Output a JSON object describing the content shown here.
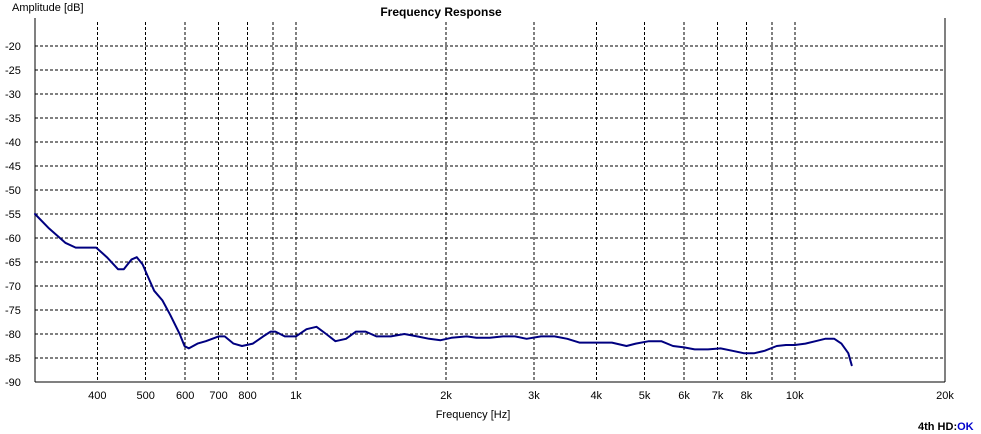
{
  "chart_data": {
    "type": "line",
    "title": "Frequency Response",
    "xlabel": "Frequency [Hz]",
    "ylabel": "Amplitude [dB]",
    "xscale": "log",
    "xlim": [
      300,
      20000
    ],
    "ylim": [
      -90,
      -15
    ],
    "grid": true,
    "x_ticks": [
      {
        "value": 400,
        "label": "400"
      },
      {
        "value": 500,
        "label": "500"
      },
      {
        "value": 600,
        "label": "600"
      },
      {
        "value": 700,
        "label": "700"
      },
      {
        "value": 800,
        "label": "800"
      },
      {
        "value": 900,
        "label": ""
      },
      {
        "value": 1000,
        "label": "1k"
      },
      {
        "value": 2000,
        "label": "2k"
      },
      {
        "value": 3000,
        "label": "3k"
      },
      {
        "value": 4000,
        "label": "4k"
      },
      {
        "value": 5000,
        "label": "5k"
      },
      {
        "value": 6000,
        "label": "6k"
      },
      {
        "value": 7000,
        "label": "7k"
      },
      {
        "value": 8000,
        "label": "8k"
      },
      {
        "value": 9000,
        "label": ""
      },
      {
        "value": 10000,
        "label": "10k"
      },
      {
        "value": 20000,
        "label": "20k"
      }
    ],
    "y_ticks": [
      {
        "value": -20,
        "label": "-20"
      },
      {
        "value": -25,
        "label": "-25"
      },
      {
        "value": -30,
        "label": "-30"
      },
      {
        "value": -35,
        "label": "-35"
      },
      {
        "value": -40,
        "label": "-40"
      },
      {
        "value": -45,
        "label": "-45"
      },
      {
        "value": -50,
        "label": "-50"
      },
      {
        "value": -55,
        "label": "-55"
      },
      {
        "value": -60,
        "label": "-60"
      },
      {
        "value": -65,
        "label": "-65"
      },
      {
        "value": -70,
        "label": "-70"
      },
      {
        "value": -75,
        "label": "-75"
      },
      {
        "value": -80,
        "label": "-80"
      },
      {
        "value": -85,
        "label": "-85"
      },
      {
        "value": -90,
        "label": "-90"
      }
    ],
    "series": [
      {
        "color": "#000080",
        "points": [
          [
            300,
            -55
          ],
          [
            320,
            -58
          ],
          [
            345,
            -61
          ],
          [
            362,
            -62
          ],
          [
            380,
            -62
          ],
          [
            398,
            -62
          ],
          [
            418,
            -64
          ],
          [
            440,
            -66.5
          ],
          [
            452,
            -66.5
          ],
          [
            468,
            -64.5
          ],
          [
            480,
            -64
          ],
          [
            493,
            -65.5
          ],
          [
            505,
            -68
          ],
          [
            520,
            -71
          ],
          [
            540,
            -73
          ],
          [
            560,
            -76
          ],
          [
            585,
            -80
          ],
          [
            598,
            -82.5
          ],
          [
            610,
            -83
          ],
          [
            635,
            -82
          ],
          [
            660,
            -81.5
          ],
          [
            700,
            -80.5
          ],
          [
            720,
            -80.5
          ],
          [
            750,
            -82
          ],
          [
            780,
            -82.5
          ],
          [
            820,
            -82
          ],
          [
            860,
            -80.5
          ],
          [
            890,
            -79.5
          ],
          [
            910,
            -79.5
          ],
          [
            950,
            -80.5
          ],
          [
            1000,
            -80.5
          ],
          [
            1050,
            -79
          ],
          [
            1100,
            -78.5
          ],
          [
            1150,
            -80
          ],
          [
            1200,
            -81.5
          ],
          [
            1260,
            -81
          ],
          [
            1320,
            -79.5
          ],
          [
            1380,
            -79.5
          ],
          [
            1450,
            -80.5
          ],
          [
            1550,
            -80.5
          ],
          [
            1650,
            -80
          ],
          [
            1750,
            -80.5
          ],
          [
            1850,
            -81
          ],
          [
            1950,
            -81.3
          ],
          [
            2050,
            -80.8
          ],
          [
            2200,
            -80.5
          ],
          [
            2300,
            -80.8
          ],
          [
            2450,
            -80.8
          ],
          [
            2600,
            -80.5
          ],
          [
            2750,
            -80.5
          ],
          [
            2900,
            -81
          ],
          [
            3100,
            -80.5
          ],
          [
            3300,
            -80.5
          ],
          [
            3500,
            -81
          ],
          [
            3700,
            -81.8
          ],
          [
            4000,
            -81.8
          ],
          [
            4300,
            -81.8
          ],
          [
            4600,
            -82.5
          ],
          [
            4800,
            -82
          ],
          [
            5100,
            -81.5
          ],
          [
            5400,
            -81.5
          ],
          [
            5700,
            -82.5
          ],
          [
            6000,
            -82.8
          ],
          [
            6300,
            -83.2
          ],
          [
            6700,
            -83.2
          ],
          [
            7100,
            -83
          ],
          [
            7500,
            -83.5
          ],
          [
            7900,
            -84
          ],
          [
            8300,
            -84
          ],
          [
            8700,
            -83.5
          ],
          [
            9200,
            -82.5
          ],
          [
            9600,
            -82.3
          ],
          [
            10000,
            -82.3
          ],
          [
            10500,
            -82
          ],
          [
            11000,
            -81.5
          ],
          [
            11500,
            -81
          ],
          [
            12000,
            -81
          ],
          [
            12400,
            -82
          ],
          [
            12800,
            -84
          ],
          [
            13000,
            -86.5
          ]
        ]
      }
    ]
  },
  "status": {
    "prefix": "4th HD:",
    "value": "OK",
    "value_color": "#0000cc"
  }
}
